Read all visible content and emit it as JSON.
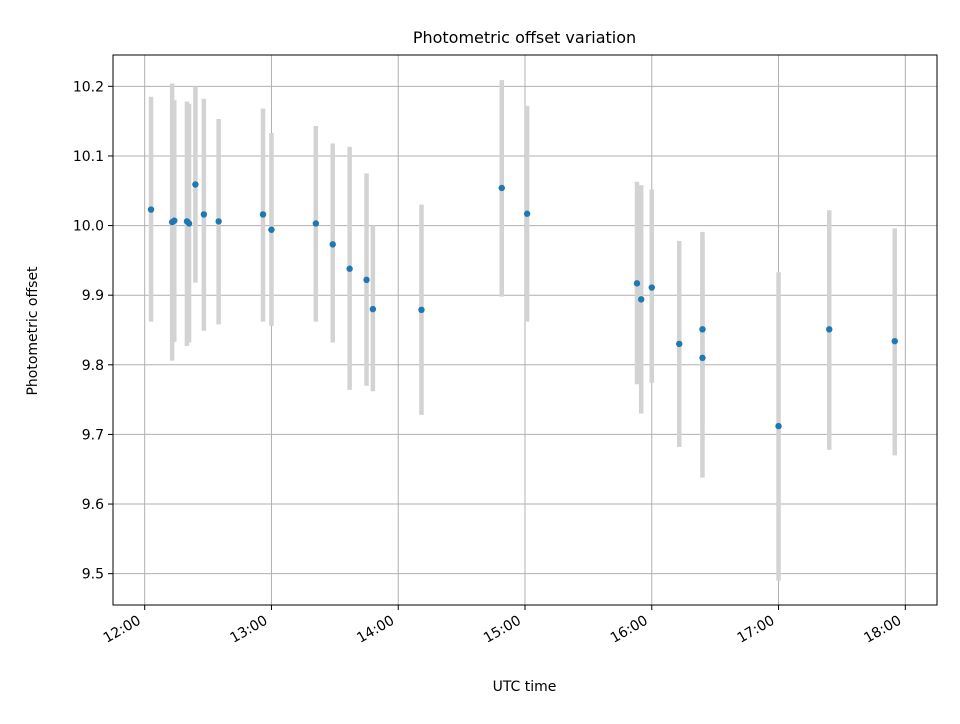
{
  "chart_data": {
    "type": "scatter",
    "title": "Photometric offset variation",
    "xlabel": "UTC time",
    "ylabel": "Photometric offset",
    "x_axis_kind": "time",
    "xlim": [
      "11:45",
      "18:15"
    ],
    "ylim": [
      9.455,
      10.245
    ],
    "grid": true,
    "legend": "none",
    "x_ticks": [
      "12:00",
      "13:00",
      "14:00",
      "15:00",
      "16:00",
      "17:00",
      "18:00"
    ],
    "y_ticks": [
      "9.5",
      "9.6",
      "9.7",
      "9.8",
      "9.9",
      "10.0",
      "10.1",
      "10.2"
    ],
    "y_tick_values": [
      9.5,
      9.6,
      9.7,
      9.8,
      9.9,
      10.0,
      10.1,
      10.2
    ],
    "series": [
      {
        "x": [
          "12:03",
          "12:13",
          "12:14",
          "12:20",
          "12:21",
          "12:24",
          "12:28",
          "12:35",
          "12:56",
          "13:00",
          "13:21",
          "13:29",
          "13:37",
          "13:45",
          "13:48",
          "14:11",
          "14:49",
          "15:01",
          "15:53",
          "15:55",
          "16:00",
          "16:13",
          "16:24",
          "16:24",
          "17:00",
          "17:24",
          "17:55"
        ],
        "y": [
          10.023,
          10.005,
          10.007,
          10.006,
          10.003,
          10.059,
          10.016,
          10.006,
          10.016,
          9.994,
          10.003,
          9.973,
          9.938,
          9.922,
          9.88,
          9.879,
          10.054,
          10.017,
          9.917,
          9.894,
          9.911,
          9.83,
          9.851,
          9.81,
          9.712,
          9.851,
          9.834
        ],
        "yerr_low": [
          9.862,
          9.806,
          9.833,
          9.827,
          9.832,
          9.918,
          9.849,
          9.858,
          9.862,
          9.856,
          9.862,
          9.832,
          9.764,
          9.77,
          9.762,
          9.728,
          9.898,
          9.862,
          9.772,
          9.73,
          9.774,
          9.682,
          9.714,
          9.638,
          9.49,
          9.678,
          9.67
        ],
        "yerr_high": [
          10.185,
          10.204,
          10.18,
          10.178,
          10.175,
          10.2,
          10.182,
          10.153,
          10.168,
          10.133,
          10.143,
          10.118,
          10.113,
          10.075,
          10.0,
          10.03,
          10.209,
          10.172,
          10.063,
          10.058,
          10.052,
          9.978,
          9.991,
          9.981,
          9.933,
          10.022,
          9.996
        ]
      }
    ],
    "colors": {
      "points": "#1f77b4",
      "errorbars": "#d3d3d3",
      "grid": "#b0b0b0"
    }
  }
}
